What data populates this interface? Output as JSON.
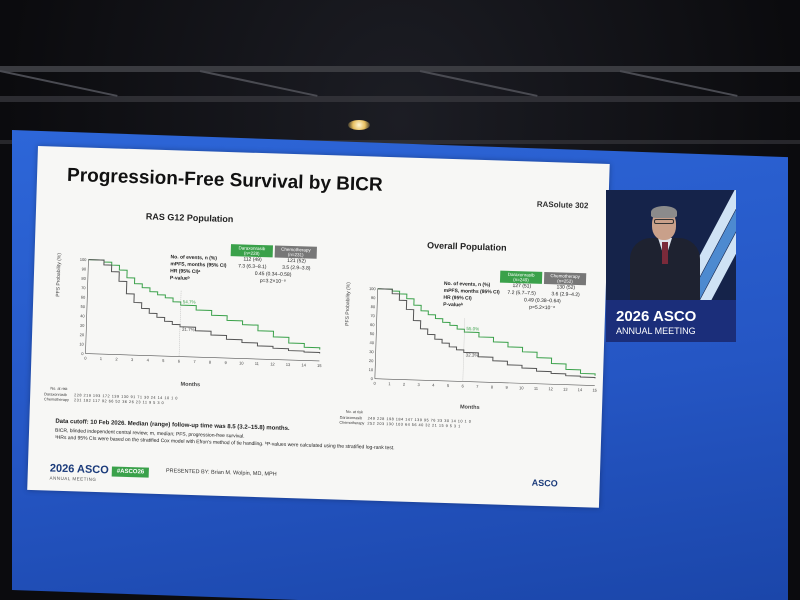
{
  "slide": {
    "title": "Progression-Free Survival by BICR",
    "brand": "RASolute 302",
    "left_panel": {
      "title": "RAS G12 Population",
      "ylabel": "PFS Probability (%)",
      "xlabel": "Months",
      "table": {
        "col1": "Daraxonrasib (n=228)",
        "col2": "Chemotherapy (n=231)",
        "rows": [
          {
            "label": "No. of events, n (%)",
            "v1": "112 (49)",
            "v2": "121 (52)"
          },
          {
            "label": "mPFS, months (95% CI)",
            "v1": "7.3 (6.3–8.1)",
            "v2": "3.5 (2.9–3.8)"
          },
          {
            "label": "HR (95% CI)ᵃ",
            "v1": "0.45 (0.34–0.58)",
            "v2": ""
          },
          {
            "label": "P-valueᵇ",
            "v1": "p=3.2×10⁻⁸",
            "v2": ""
          }
        ]
      },
      "annotations": [
        "54.7%",
        "31.7%"
      ],
      "risk": {
        "header": "No. at risk",
        "rows": [
          {
            "name": "Daraxonrasib",
            "values": "228 219 193 172 139 130 91 71 30 24 14 10 1 0"
          },
          {
            "name": "Chemotherapy",
            "values": "231 182 117 92 66 52 36 26 23 11 9 5 3 0"
          }
        ]
      }
    },
    "right_panel": {
      "title": "Overall Population",
      "ylabel": "PFS Probability (%)",
      "xlabel": "Months",
      "table": {
        "col1": "Daraxonrasib (n=249)",
        "col2": "Chemotherapy (n=252)",
        "rows": [
          {
            "label": "No. of events, n (%)",
            "v1": "127 (51)",
            "v2": "130 (52)"
          },
          {
            "label": "mPFS, months (95% CI)",
            "v1": "7.2 (5.7–7.5)",
            "v2": "3.6 (2.9–4.2)"
          },
          {
            "label": "HR (95% CI)",
            "v1": "0.49 (0.38–0.64)",
            "v2": ""
          },
          {
            "label": "P-valueᵇ",
            "v1": "p=5.2×10⁻⁸",
            "v2": ""
          }
        ]
      },
      "annotations": [
        "55.0%",
        "32.3%"
      ],
      "risk": {
        "header": "No. at risk",
        "rows": [
          {
            "name": "Daraxonrasib",
            "values": "249 228 198 184 147 139 95 76 33 30 14 10 1 0"
          },
          {
            "name": "Chemotherapy",
            "values": "252 203 130 103 64 56 40 32 21 15 9 5 3 1"
          }
        ]
      }
    },
    "footnotes": {
      "cutoff": "Data cutoff: 10 Feb 2026. Median (range) follow-up time was 8.5 (3.2–15.8) months.",
      "line2": "BICR, blinded independent central review; m, median; PFS, progression-free survival.",
      "line3": "ᵃHRs and 95% CIs were based on the stratified Cox model with Efron's method of tie handling. ᵇP-values were calculated using the stratified log-rank test."
    },
    "footer": {
      "asco_logo": "2026 ASCO",
      "asco_sub": "ANNUAL MEETING",
      "hashtag": "#ASCO26",
      "presenter": "PRESENTED BY:  Brian M. Wolpin, MD, MPH",
      "asco_right": "ASCO"
    }
  },
  "banner": {
    "title": "2026 ASCO",
    "subtitle": "ANNUAL MEETING"
  },
  "chart_data": [
    {
      "type": "line",
      "title": "RAS G12 Population",
      "xlabel": "Months",
      "ylabel": "PFS Probability (%)",
      "xlim": [
        0,
        15
      ],
      "ylim": [
        0,
        100
      ],
      "x_ticks": [
        0,
        1,
        2,
        3,
        4,
        5,
        6,
        7,
        8,
        9,
        10,
        11,
        12,
        13,
        14,
        15
      ],
      "y_ticks": [
        0,
        10,
        20,
        30,
        40,
        50,
        60,
        70,
        80,
        90,
        100
      ],
      "series": [
        {
          "name": "Daraxonrasib",
          "color": "#3aa14a",
          "x": [
            0,
            1,
            1.5,
            2,
            2.5,
            3,
            3.5,
            4,
            4.5,
            5,
            5.5,
            6,
            7,
            8,
            9,
            10,
            11,
            12,
            13,
            14,
            15
          ],
          "y": [
            100,
            98,
            95,
            90,
            82,
            76,
            72,
            68,
            65,
            62,
            58,
            54.7,
            50,
            45,
            40,
            36,
            30,
            24,
            18,
            14,
            12
          ]
        },
        {
          "name": "Chemotherapy",
          "color": "#555555",
          "x": [
            0,
            1,
            1.5,
            2,
            2.5,
            3,
            3.5,
            4,
            4.5,
            5,
            5.5,
            6,
            7,
            8,
            9,
            10,
            11,
            12,
            13,
            14,
            15
          ],
          "y": [
            100,
            95,
            88,
            78,
            65,
            56,
            50,
            45,
            41,
            37,
            34,
            31.7,
            28,
            24,
            20,
            17,
            14,
            12,
            10,
            9,
            8
          ]
        }
      ]
    },
    {
      "type": "line",
      "title": "Overall Population",
      "xlabel": "Months",
      "ylabel": "PFS Probability (%)",
      "xlim": [
        0,
        15
      ],
      "ylim": [
        0,
        100
      ],
      "x_ticks": [
        0,
        1,
        2,
        3,
        4,
        5,
        6,
        7,
        8,
        9,
        10,
        11,
        12,
        13,
        14,
        15
      ],
      "y_ticks": [
        0,
        10,
        20,
        30,
        40,
        50,
        60,
        70,
        80,
        90,
        100
      ],
      "series": [
        {
          "name": "Daraxonrasib",
          "color": "#3aa14a",
          "x": [
            0,
            1,
            1.5,
            2,
            2.5,
            3,
            3.5,
            4,
            4.5,
            5,
            5.5,
            6,
            7,
            8,
            9,
            10,
            11,
            12,
            13,
            14,
            15
          ],
          "y": [
            100,
            98,
            95,
            90,
            83,
            77,
            73,
            69,
            65,
            62,
            58,
            55,
            50,
            45,
            40,
            35,
            29,
            23,
            17,
            13,
            11
          ]
        },
        {
          "name": "Chemotherapy",
          "color": "#555555",
          "x": [
            0,
            1,
            1.5,
            2,
            2.5,
            3,
            3.5,
            4,
            4.5,
            5,
            5.5,
            6,
            7,
            8,
            9,
            10,
            11,
            12,
            13,
            14,
            15
          ],
          "y": [
            100,
            95,
            88,
            78,
            66,
            57,
            51,
            46,
            42,
            38,
            35,
            32.3,
            28,
            24,
            20,
            17,
            14,
            12,
            10,
            9,
            8
          ]
        }
      ]
    }
  ]
}
